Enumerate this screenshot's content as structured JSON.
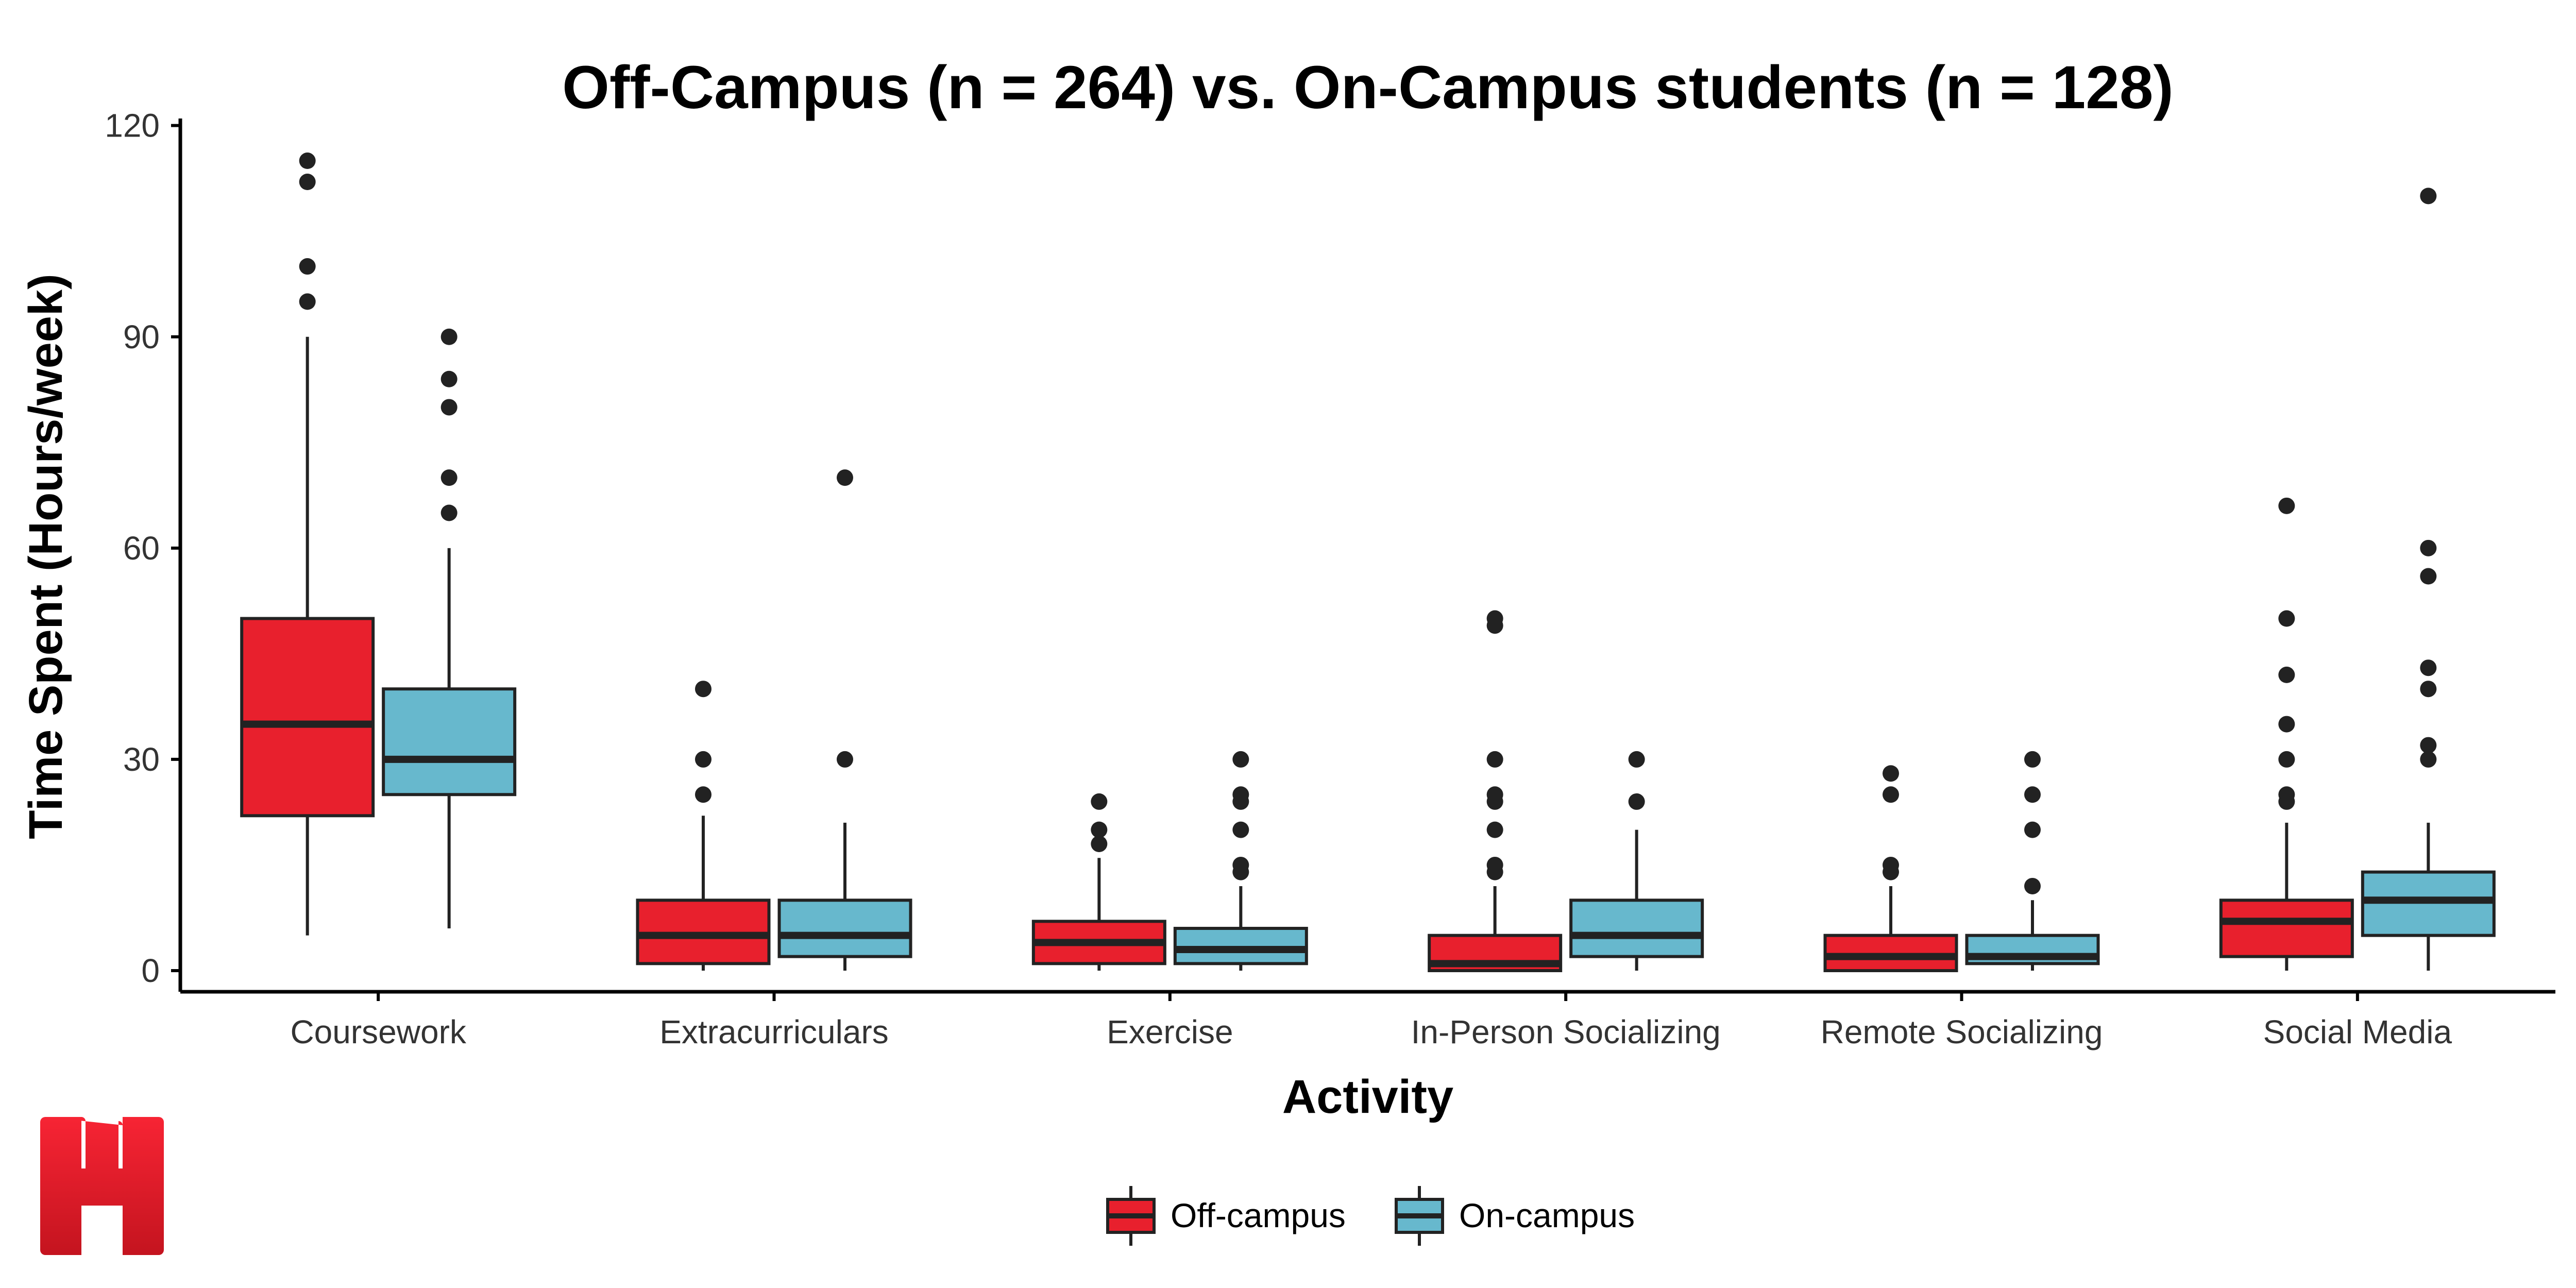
{
  "chart_data": {
    "type": "box",
    "title": "Off-Campus (n = 264) vs. On-Campus students (n = 128)",
    "xlabel": "Activity",
    "ylabel": "Time Spent (Hours/week)",
    "ylim": [
      -3,
      121
    ],
    "yticks": [
      0,
      30,
      60,
      90,
      120
    ],
    "grid": false,
    "legend_position": "bottom",
    "categories": [
      "Coursework",
      "Extracurriculars",
      "Exercise",
      "In-Person Socializing",
      "Remote Socializing",
      "Social Media"
    ],
    "series": [
      {
        "name": "Off-campus",
        "color": "#E8202D",
        "boxes": [
          {
            "whisker_low": 5,
            "q1": 22,
            "median": 35,
            "q3": 50,
            "whisker_high": 90,
            "outliers": [
              95,
              100,
              112,
              115
            ]
          },
          {
            "whisker_low": 0,
            "q1": 1,
            "median": 5,
            "q3": 10,
            "whisker_high": 22,
            "outliers": [
              25,
              30,
              40
            ]
          },
          {
            "whisker_low": 0,
            "q1": 1,
            "median": 4,
            "q3": 7,
            "whisker_high": 16,
            "outliers": [
              18,
              20,
              24
            ]
          },
          {
            "whisker_low": 0,
            "q1": 0,
            "median": 1,
            "q3": 5,
            "whisker_high": 12,
            "outliers": [
              14,
              15,
              20,
              24,
              25,
              30,
              49,
              50
            ]
          },
          {
            "whisker_low": 0,
            "q1": 0,
            "median": 2,
            "q3": 5,
            "whisker_high": 12,
            "outliers": [
              14,
              15,
              25,
              28
            ]
          },
          {
            "whisker_low": 0,
            "q1": 2,
            "median": 7,
            "q3": 10,
            "whisker_high": 21,
            "outliers": [
              24,
              25,
              30,
              35,
              42,
              50,
              66
            ]
          }
        ]
      },
      {
        "name": "On-campus",
        "color": "#67B8CD",
        "boxes": [
          {
            "whisker_low": 6,
            "q1": 25,
            "median": 30,
            "q3": 40,
            "whisker_high": 60,
            "outliers": [
              65,
              70,
              80,
              84,
              90
            ]
          },
          {
            "whisker_low": 0,
            "q1": 2,
            "median": 5,
            "q3": 10,
            "whisker_high": 21,
            "outliers": [
              30,
              70
            ]
          },
          {
            "whisker_low": 0,
            "q1": 1,
            "median": 3,
            "q3": 6,
            "whisker_high": 12,
            "outliers": [
              14,
              15,
              20,
              24,
              25,
              30
            ]
          },
          {
            "whisker_low": 0,
            "q1": 2,
            "median": 5,
            "q3": 10,
            "whisker_high": 20,
            "outliers": [
              24,
              30
            ]
          },
          {
            "whisker_low": 0,
            "q1": 1,
            "median": 2,
            "q3": 5,
            "whisker_high": 10,
            "outliers": [
              12,
              20,
              25,
              30
            ]
          },
          {
            "whisker_low": 0,
            "q1": 5,
            "median": 10,
            "q3": 14,
            "whisker_high": 21,
            "outliers": [
              30,
              32,
              40,
              43,
              56,
              60,
              110
            ]
          }
        ]
      }
    ]
  },
  "logo": {
    "letter": "H",
    "colors": {
      "top": "#F72434",
      "bottom": "#C4141F"
    }
  },
  "colors": {
    "box_outline": "#222222",
    "axis": "#000000",
    "point": "#222222"
  }
}
